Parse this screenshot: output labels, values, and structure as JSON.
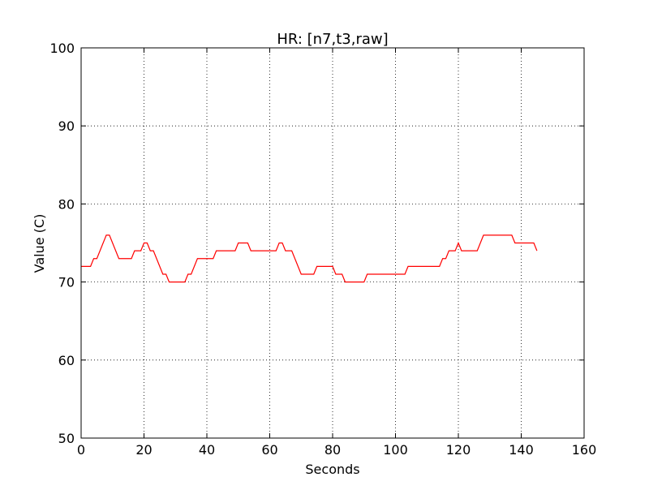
{
  "chart_data": {
    "type": "line",
    "title": "HR: [n7,t3,raw]",
    "x_label": "Seconds",
    "y_label": "Value (C)",
    "xlim": [
      0,
      160
    ],
    "xticks": [
      0,
      20,
      40,
      60,
      80,
      100,
      120,
      140,
      160
    ],
    "ylim": [
      50,
      100
    ],
    "yticks": [
      50,
      60,
      70,
      80,
      90,
      100
    ],
    "grid": true,
    "x": [
      0,
      1,
      2,
      3,
      4,
      5,
      6,
      7,
      8,
      9,
      10,
      11,
      12,
      13,
      14,
      15,
      16,
      17,
      18,
      19,
      20,
      21,
      22,
      23,
      24,
      25,
      26,
      27,
      28,
      29,
      30,
      31,
      32,
      33,
      34,
      35,
      36,
      37,
      38,
      39,
      40,
      41,
      42,
      43,
      44,
      45,
      46,
      47,
      48,
      49,
      50,
      51,
      52,
      53,
      54,
      55,
      56,
      57,
      58,
      59,
      60,
      61,
      62,
      63,
      64,
      65,
      66,
      67,
      68,
      69,
      70,
      71,
      72,
      73,
      74,
      75,
      76,
      77,
      78,
      79,
      80,
      81,
      82,
      83,
      84,
      85,
      86,
      87,
      88,
      89,
      90,
      91,
      92,
      93,
      94,
      95,
      96,
      97,
      98,
      99,
      100,
      101,
      102,
      103,
      104,
      105,
      106,
      107,
      108,
      109,
      110,
      111,
      112,
      113,
      114,
      115,
      116,
      117,
      118,
      119,
      120,
      121,
      122,
      123,
      124,
      125,
      126,
      127,
      128,
      129,
      130,
      131,
      132,
      133,
      134,
      135,
      136,
      137,
      138,
      139,
      140,
      141,
      142,
      143,
      144,
      145
    ],
    "series": [
      {
        "color": "#ff0000",
        "values": [
          72,
          72,
          72,
          72,
          73,
          73,
          74,
          75,
          76,
          76,
          75,
          74,
          73,
          73,
          73,
          73,
          73,
          74,
          74,
          74,
          75,
          75,
          74,
          74,
          73,
          72,
          71,
          71,
          70,
          70,
          70,
          70,
          70,
          70,
          71,
          71,
          72,
          73,
          73,
          73,
          73,
          73,
          73,
          74,
          74,
          74,
          74,
          74,
          74,
          74,
          75,
          75,
          75,
          75,
          74,
          74,
          74,
          74,
          74,
          74,
          74,
          74,
          74,
          75,
          75,
          74,
          74,
          74,
          73,
          72,
          71,
          71,
          71,
          71,
          71,
          72,
          72,
          72,
          72,
          72,
          72,
          71,
          71,
          71,
          70,
          70,
          70,
          70,
          70,
          70,
          70,
          71,
          71,
          71,
          71,
          71,
          71,
          71,
          71,
          71,
          71,
          71,
          71,
          71,
          72,
          72,
          72,
          72,
          72,
          72,
          72,
          72,
          72,
          72,
          72,
          73,
          73,
          74,
          74,
          74,
          75,
          74,
          74,
          74,
          74,
          74,
          74,
          75,
          76,
          76,
          76,
          76,
          76,
          76,
          76,
          76,
          76,
          76,
          75,
          75,
          75,
          75,
          75,
          75,
          75,
          74
        ]
      }
    ]
  }
}
